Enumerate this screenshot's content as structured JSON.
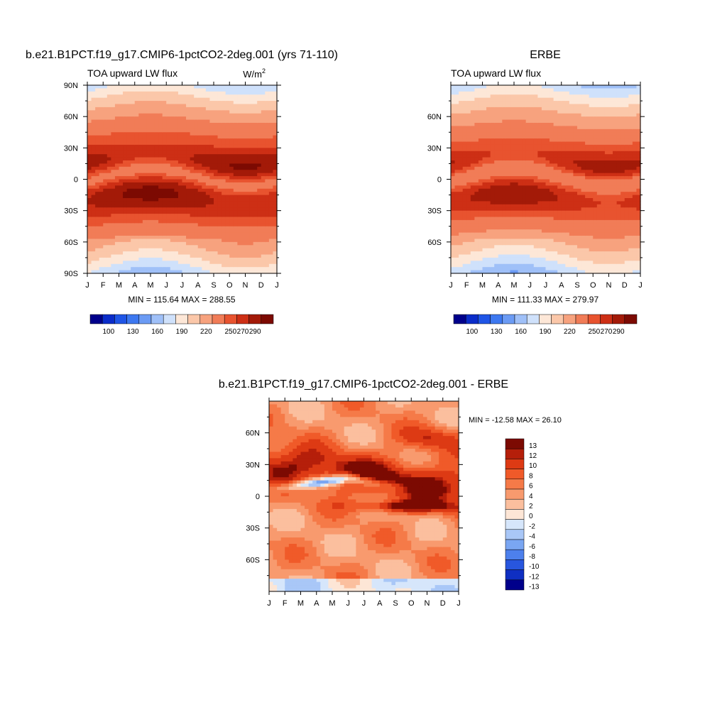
{
  "chart_data": [
    {
      "type": "heatmap",
      "title": "b.e21.B1PCT.f19_g17.CMIP6-1pctCO2-2deg.001 (yrs 71-110)",
      "subtitle_left": "TOA upward LW flux",
      "units": "W/m",
      "units_sup": "2",
      "x_ticks": [
        "J",
        "F",
        "M",
        "A",
        "M",
        "J",
        "J",
        "A",
        "S",
        "O",
        "N",
        "D",
        "J"
      ],
      "y_ticks": [
        "90N",
        "60N",
        "30N",
        "0",
        "30S",
        "60S",
        "90S"
      ],
      "ylim": [
        -90,
        90
      ],
      "stats": "MIN = 115.64 MAX = 288.55",
      "colorbar_labels": [
        "100",
        "130",
        "160",
        "190",
        "220",
        "250",
        "270",
        "290"
      ],
      "variant": "model"
    },
    {
      "type": "heatmap",
      "title": "ERBE",
      "subtitle_left": "TOA upward LW flux",
      "x_ticks": [
        "J",
        "F",
        "M",
        "A",
        "M",
        "J",
        "J",
        "A",
        "S",
        "O",
        "N",
        "D",
        "J"
      ],
      "y_ticks": [
        "60N",
        "30N",
        "0",
        "30S",
        "60S"
      ],
      "ylim": [
        -90,
        90
      ],
      "stats": "MIN = 111.33 MAX = 279.97",
      "colorbar_labels": [
        "100",
        "130",
        "160",
        "190",
        "220",
        "250",
        "270",
        "290"
      ],
      "variant": "obs"
    },
    {
      "type": "heatmap",
      "title": "b.e21.B1PCT.f19_g17.CMIP6-1pctCO2-2deg.001 - ERBE",
      "x_ticks": [
        "J",
        "F",
        "M",
        "A",
        "M",
        "J",
        "J",
        "A",
        "S",
        "O",
        "N",
        "D",
        "J"
      ],
      "y_ticks": [
        "60N",
        "30N",
        "0",
        "30S",
        "60S"
      ],
      "ylim": [
        -90,
        90
      ],
      "stats": "MIN = -12.58 MAX =  26.10",
      "colorbar_labels": [
        "13",
        "12",
        "10",
        "8",
        "6",
        "4",
        "2",
        "0",
        "-2",
        "-4",
        "-6",
        "-8",
        "-10",
        "-12",
        "-13"
      ]
    }
  ],
  "colors": {
    "flux_scale": [
      "#00008b",
      "#0a2cc9",
      "#1f55e6",
      "#3d78f0",
      "#6b9bf4",
      "#9fc0f8",
      "#cfe1fb",
      "#fde7d7",
      "#fbc7a9",
      "#f7a27e",
      "#f17c57",
      "#e8532f",
      "#cd2f15",
      "#a31a08",
      "#7c0a02"
    ],
    "diff_scale": [
      "#7c0a02",
      "#b51f0a",
      "#dd3a14",
      "#f05a29",
      "#f57a48",
      "#f89a6e",
      "#fbbf9e",
      "#fde6d6",
      "#d6e6fb",
      "#a9c7f7",
      "#7aa6f2",
      "#4d80ec",
      "#2856de",
      "#0f2fc2",
      "#00008b"
    ]
  }
}
